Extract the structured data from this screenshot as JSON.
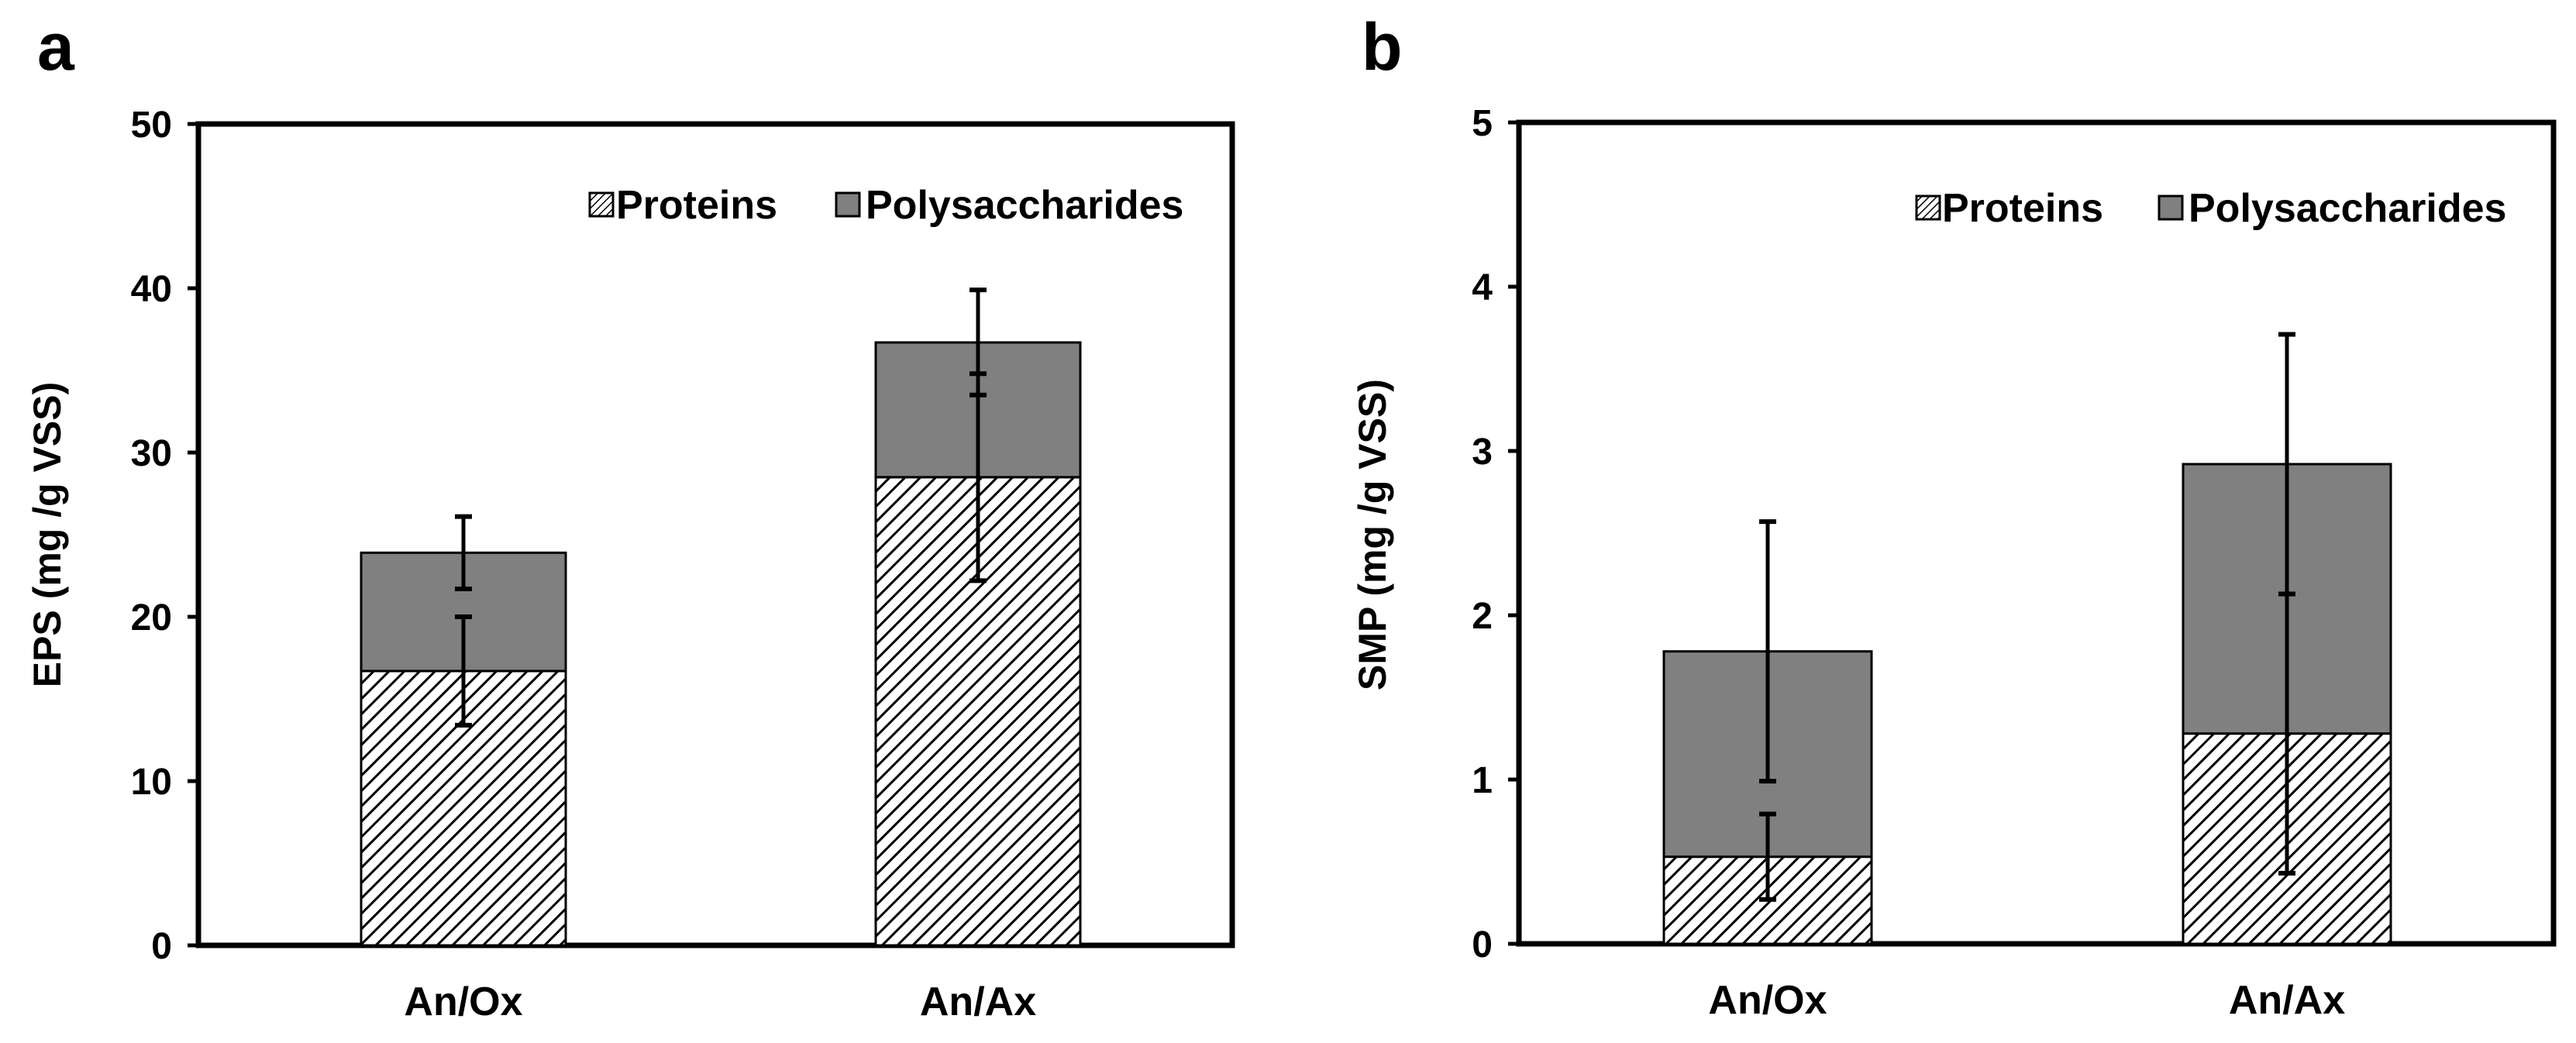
{
  "colors": {
    "polysaccharides": "#808080",
    "proteins_stroke": "#000000",
    "proteins_fill": "#ffffff",
    "axis": "#000000"
  },
  "chart_data": [
    {
      "type": "bar",
      "stacked": true,
      "panel_label": "a",
      "categories": [
        "An/Ox",
        "An/Ax"
      ],
      "series": [
        {
          "name": "Proteins",
          "pattern": "hatched",
          "values": [
            16.7,
            28.5
          ],
          "error": [
            3.3,
            6.3
          ]
        },
        {
          "name": "Polysaccharides",
          "pattern": "solid-gray",
          "values": [
            7.2,
            8.2
          ],
          "error": [
            2.2,
            3.2
          ]
        }
      ],
      "xlabel": "",
      "ylabel": "EPS (mg /g VSS)",
      "ylim": [
        0,
        50
      ],
      "yticks": [
        0,
        10,
        20,
        30,
        40,
        50
      ],
      "legend": "top-right",
      "grid": false
    },
    {
      "type": "bar",
      "stacked": true,
      "panel_label": "b",
      "categories": [
        "An/Ox",
        "An/Ax"
      ],
      "series": [
        {
          "name": "Proteins",
          "pattern": "hatched",
          "values": [
            0.53,
            1.28
          ],
          "error": [
            0.26,
            0.85
          ]
        },
        {
          "name": "Polysaccharides",
          "pattern": "solid-gray",
          "values": [
            1.25,
            1.64
          ],
          "error": [
            0.79,
            0.79
          ]
        }
      ],
      "xlabel": "",
      "ylabel": "SMP (mg /g VSS)",
      "ylim": [
        0,
        5
      ],
      "yticks": [
        0,
        1,
        2,
        3,
        4,
        5
      ],
      "legend": "top-right",
      "grid": false
    }
  ]
}
